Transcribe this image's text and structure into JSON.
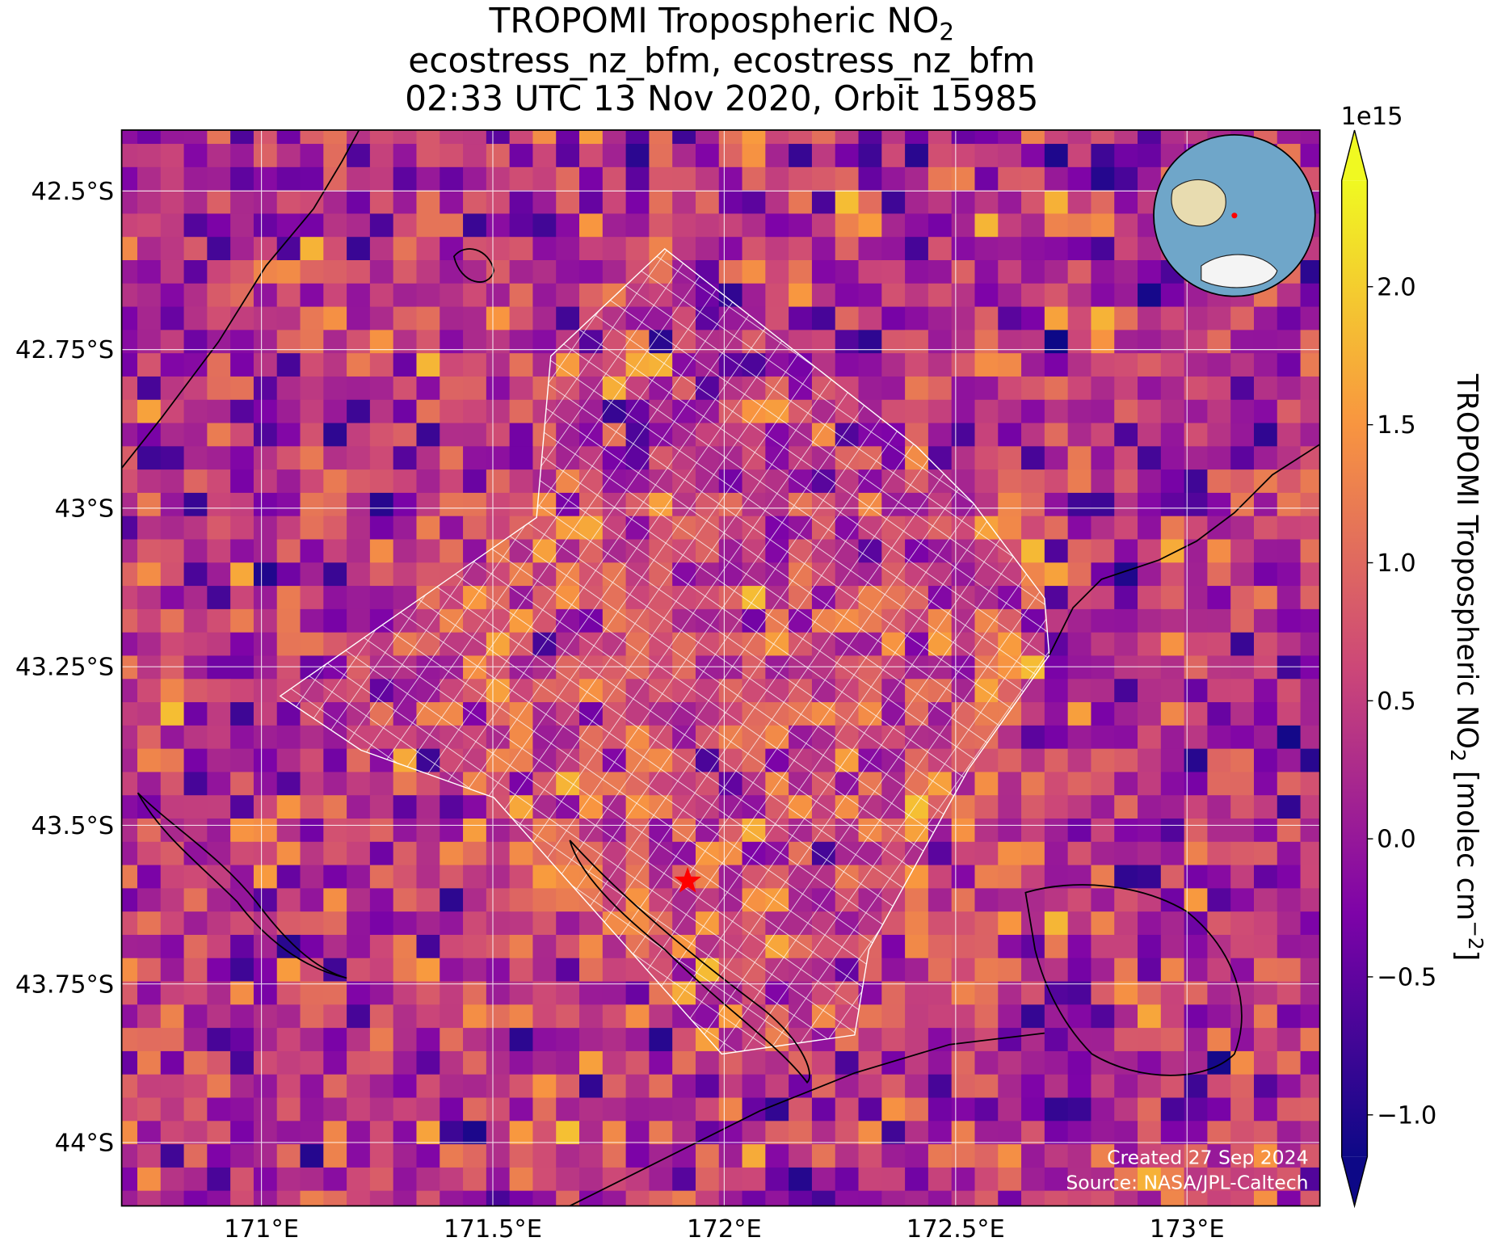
{
  "chart_data": {
    "type": "map",
    "title": {
      "main": "TROPOMI Tropospheric NO",
      "subscript": "2",
      "lines": [
        "ecostress_nz_bfm, ecostress_nz_bfm",
        "02:33 UTC 13 Nov 2020, Orbit 15985"
      ]
    },
    "xlim": [
      170.698,
      173.287
    ],
    "ylim": [
      -44.1,
      -42.404
    ],
    "xticks": [
      {
        "value": 171,
        "label": "171°E"
      },
      {
        "value": 171.5,
        "label": "171.5°E"
      },
      {
        "value": 172,
        "label": "172°E"
      },
      {
        "value": 172.5,
        "label": "172.5°E"
      },
      {
        "value": 173,
        "label": "173°E"
      }
    ],
    "yticks": [
      {
        "value": -42.5,
        "label": "42.5°S"
      },
      {
        "value": -42.75,
        "label": "42.75°S"
      },
      {
        "value": -43,
        "label": "43°S"
      },
      {
        "value": -43.25,
        "label": "43.25°S"
      },
      {
        "value": -43.5,
        "label": "43.5°S"
      },
      {
        "value": -43.75,
        "label": "43.75°S"
      },
      {
        "value": -44,
        "label": "44°S"
      }
    ],
    "grid": true,
    "marker": {
      "lon": 171.921,
      "lat": -43.588,
      "color": "#ff0000"
    },
    "colorbar": {
      "label_parts": [
        "TROPOMI Tropospheric NO",
        "2",
        " [molec cm",
        "−2",
        "]"
      ],
      "exponent": "1e15",
      "clim": [
        -1.151,
        2.385
      ],
      "colormap": [
        "#0d0887",
        "#7e03a8",
        "#cc4778",
        "#f89540",
        "#f0f921"
      ],
      "ticks": [
        {
          "value": -1,
          "label": "−1.0"
        },
        {
          "value": -0.5,
          "label": "−0.5"
        },
        {
          "value": 0,
          "label": "0.0"
        },
        0.5,
        {
          "value": 1,
          "label": "1.0"
        },
        1.5,
        {
          "value": 2,
          "label": "2.0"
        }
      ]
    },
    "footer": [
      "Created 27 Sep 2024",
      "Source: NASA/JPL-Caltech"
    ]
  }
}
